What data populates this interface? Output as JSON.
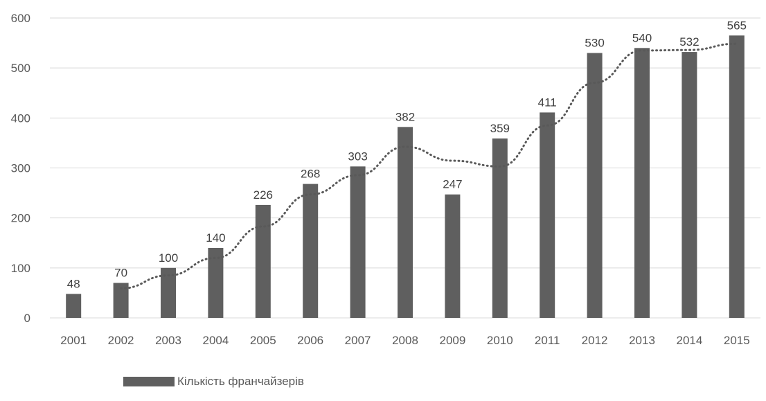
{
  "chart_data": {
    "type": "bar",
    "title": "",
    "xlabel": "",
    "ylabel": "",
    "categories": [
      "2001",
      "2002",
      "2003",
      "2004",
      "2005",
      "2006",
      "2007",
      "2008",
      "2009",
      "2010",
      "2011",
      "2012",
      "2013",
      "2014",
      "2015"
    ],
    "series": [
      {
        "name": "Кількість франчайзерів",
        "values": [
          48,
          70,
          100,
          140,
          226,
          268,
          303,
          382,
          247,
          359,
          411,
          530,
          540,
          532,
          565
        ],
        "color": "#5f5f5f"
      }
    ],
    "data_labels": [
      "48",
      "70",
      "100",
      "140",
      "226",
      "268",
      "303",
      "382",
      "247",
      "359",
      "411",
      "530",
      "540",
      "532",
      "565"
    ],
    "yticks": [
      "0",
      "100",
      "200",
      "300",
      "400",
      "500",
      "600"
    ],
    "ylim": [
      0,
      600
    ],
    "grid": true,
    "trendline": {
      "style": "dotted",
      "color": "#595959",
      "description": "two-period moving average",
      "values": [
        59,
        85,
        120,
        183,
        247,
        285.5,
        342.5,
        314.5,
        303,
        385,
        470.5,
        535,
        536,
        548.5
      ]
    },
    "legend": {
      "position": "bottom-left",
      "label": "Кількість франчайзерів"
    }
  }
}
